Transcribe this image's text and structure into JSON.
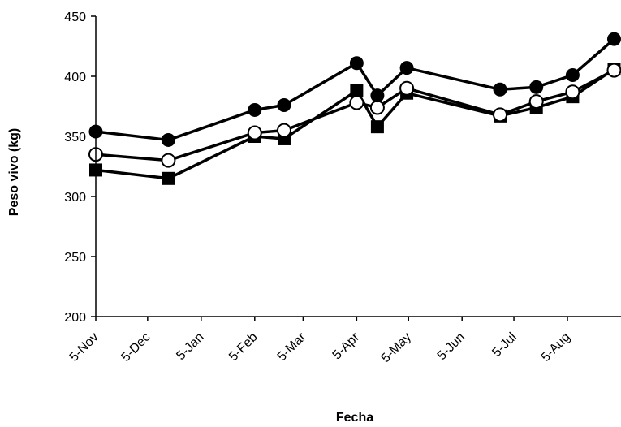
{
  "chart_data": {
    "type": "line",
    "xlabel": "Fecha",
    "ylabel": "Peso vivo (kg)",
    "ylim": [
      200,
      450
    ],
    "yticks": [
      200,
      250,
      300,
      350,
      400,
      450
    ],
    "xticks": [
      "5-Nov",
      "5-Dec",
      "5-Jan",
      "5-Feb",
      "5-Mar",
      "5-Apr",
      "5-May",
      "5-Jun",
      "5-Jul",
      "5-Aug"
    ],
    "x_axis_type": "date",
    "xlim": [
      "5-Nov",
      "5-Sep"
    ],
    "grid": false,
    "legend": "none",
    "colors": {
      "line": "#000000",
      "filled_marker": "#000000",
      "open_marker_fill": "#ffffff"
    },
    "series": [
      {
        "marker": "filled-circle",
        "points": [
          {
            "x": "5-Nov",
            "y": 354
          },
          {
            "x": "17-Dec",
            "y": 347
          },
          {
            "x": "5-Feb",
            "y": 372
          },
          {
            "x": "22-Feb",
            "y": 376
          },
          {
            "x": "5-Apr",
            "y": 411
          },
          {
            "x": "17-Apr",
            "y": 384
          },
          {
            "x": "4-May",
            "y": 407
          },
          {
            "x": "27-Jun",
            "y": 389
          },
          {
            "x": "18-Jul",
            "y": 391
          },
          {
            "x": "8-Aug",
            "y": 401
          },
          {
            "x": "1-Sep",
            "y": 431
          }
        ]
      },
      {
        "marker": "open-circle",
        "points": [
          {
            "x": "5-Nov",
            "y": 335
          },
          {
            "x": "17-Dec",
            "y": 330
          },
          {
            "x": "5-Feb",
            "y": 353
          },
          {
            "x": "22-Feb",
            "y": 355
          },
          {
            "x": "5-Apr",
            "y": 378
          },
          {
            "x": "17-Apr",
            "y": 374
          },
          {
            "x": "4-May",
            "y": 390
          },
          {
            "x": "27-Jun",
            "y": 368
          },
          {
            "x": "18-Jul",
            "y": 379
          },
          {
            "x": "8-Aug",
            "y": 387
          },
          {
            "x": "1-Sep",
            "y": 405
          }
        ]
      },
      {
        "marker": "filled-square",
        "points": [
          {
            "x": "5-Nov",
            "y": 322
          },
          {
            "x": "17-Dec",
            "y": 315
          },
          {
            "x": "5-Feb",
            "y": 350
          },
          {
            "x": "22-Feb",
            "y": 348
          },
          {
            "x": "5-Apr",
            "y": 388
          },
          {
            "x": "17-Apr",
            "y": 358
          },
          {
            "x": "4-May",
            "y": 386
          },
          {
            "x": "27-Jun",
            "y": 367
          },
          {
            "x": "18-Jul",
            "y": 374
          },
          {
            "x": "8-Aug",
            "y": 383
          },
          {
            "x": "1-Sep",
            "y": 406
          }
        ]
      }
    ]
  }
}
